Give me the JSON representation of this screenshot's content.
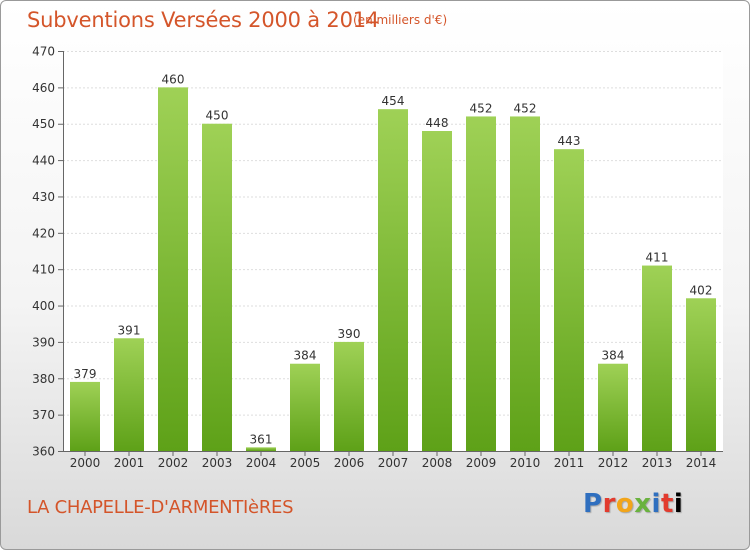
{
  "title": "Subventions Versées 2000 à 2014",
  "subtitle": "(en milliers d'€)",
  "place": "LA CHAPELLE-D'ARMENTIèRES",
  "logo": "Proxiti",
  "colors": {
    "bar_top": "#9fd156",
    "bar_bottom": "#5ea118",
    "text_accent": "#d4552a"
  },
  "chart_data": {
    "type": "bar",
    "title": "Subventions Versées 2000 à 2014",
    "subtitle": "(en milliers d'€)",
    "categories": [
      "2000",
      "2001",
      "2002",
      "2003",
      "2004",
      "2005",
      "2006",
      "2007",
      "2008",
      "2009",
      "2010",
      "2011",
      "2012",
      "2013",
      "2014"
    ],
    "values": [
      379,
      391,
      460,
      450,
      361,
      384,
      390,
      454,
      448,
      452,
      452,
      443,
      384,
      411,
      402
    ],
    "ylim": [
      360,
      470
    ],
    "yticks": [
      360,
      370,
      380,
      390,
      400,
      410,
      420,
      430,
      440,
      450,
      460,
      470
    ],
    "grid": true,
    "data_labels": true
  }
}
